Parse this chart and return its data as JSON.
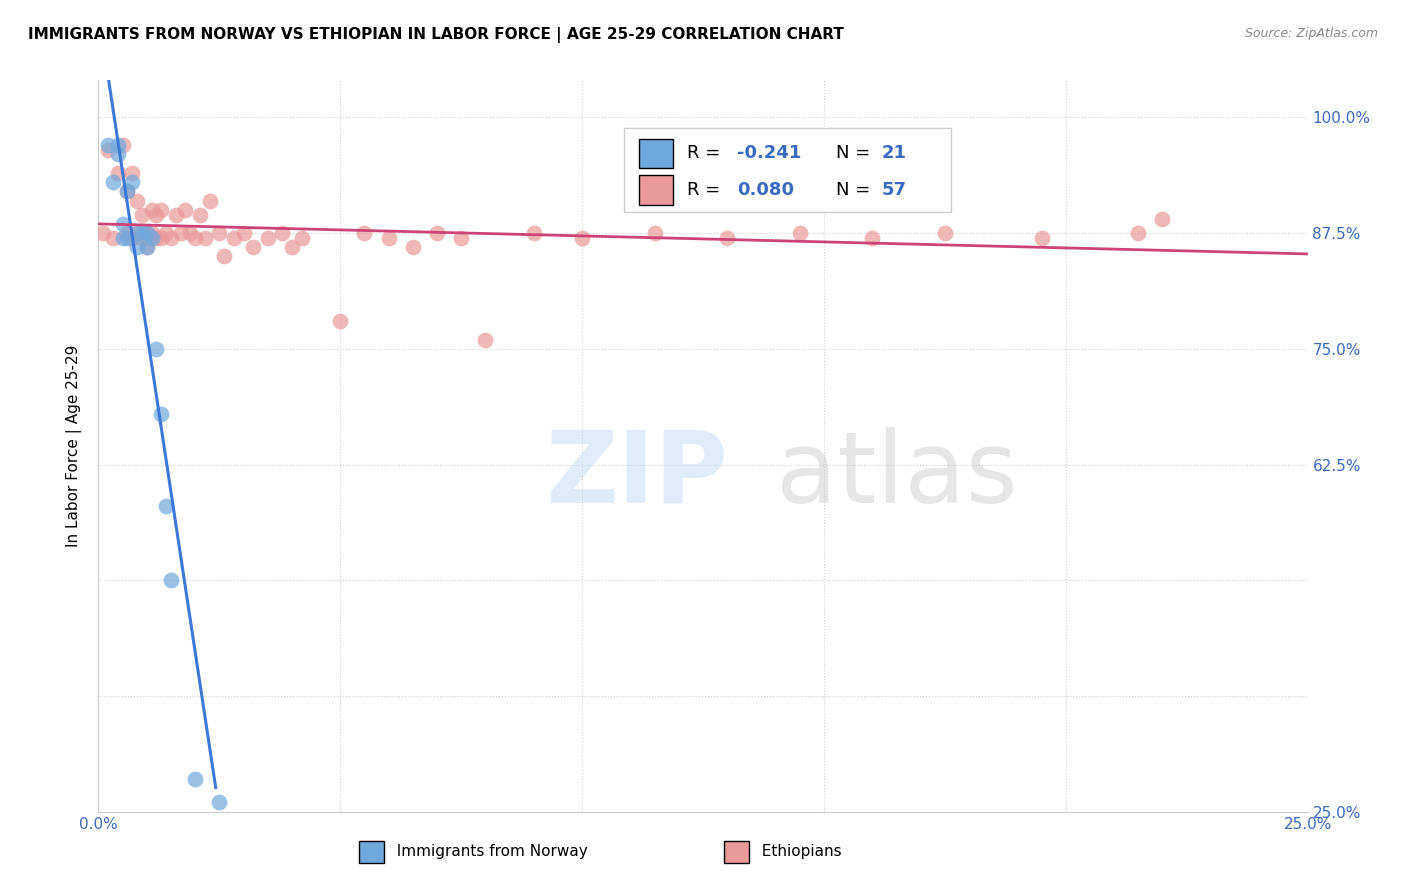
{
  "title": "IMMIGRANTS FROM NORWAY VS ETHIOPIAN IN LABOR FORCE | AGE 25-29 CORRELATION CHART",
  "source": "Source: ZipAtlas.com",
  "xlabel": "",
  "ylabel": "In Labor Force | Age 25-29",
  "xlim": [
    0.0,
    0.25
  ],
  "ylim": [
    0.25,
    1.04
  ],
  "xticks": [
    0.0,
    0.05,
    0.1,
    0.15,
    0.2,
    0.25
  ],
  "xtick_labels": [
    "0.0%",
    "",
    "",
    "",
    "",
    "25.0%"
  ],
  "yticks": [
    0.25,
    0.375,
    0.5,
    0.625,
    0.75,
    0.875,
    1.0
  ],
  "ytick_labels_right": [
    "25.0%",
    "",
    "",
    "62.5%",
    "75.0%",
    "87.5%",
    "100.0%"
  ],
  "norway_color": "#6fa8dc",
  "ethiopia_color": "#ea9999",
  "norway_R": -0.241,
  "norway_N": 21,
  "ethiopia_R": 0.08,
  "ethiopia_N": 57,
  "norway_line_color": "#3c78d8",
  "ethiopia_line_color": "#cc4477",
  "norway_line_dash_color": "#aac4e8",
  "background_color": "#ffffff",
  "grid_color": "#d0d0d0",
  "norway_x": [
    0.002,
    0.003,
    0.004,
    0.004,
    0.005,
    0.005,
    0.006,
    0.006,
    0.007,
    0.008,
    0.008,
    0.009,
    0.01,
    0.01,
    0.011,
    0.012,
    0.013,
    0.014,
    0.015,
    0.02,
    0.025
  ],
  "norway_y": [
    0.97,
    0.93,
    0.97,
    0.96,
    0.885,
    0.87,
    0.92,
    0.87,
    0.93,
    0.875,
    0.86,
    0.875,
    0.875,
    0.86,
    0.87,
    0.75,
    0.68,
    0.58,
    0.5,
    0.285,
    0.26
  ],
  "ethiopia_x": [
    0.001,
    0.002,
    0.003,
    0.004,
    0.005,
    0.006,
    0.006,
    0.007,
    0.007,
    0.008,
    0.008,
    0.009,
    0.009,
    0.01,
    0.01,
    0.011,
    0.011,
    0.012,
    0.012,
    0.013,
    0.013,
    0.014,
    0.015,
    0.016,
    0.017,
    0.018,
    0.019,
    0.02,
    0.021,
    0.022,
    0.023,
    0.025,
    0.026,
    0.028,
    0.03,
    0.032,
    0.035,
    0.038,
    0.04,
    0.042,
    0.05,
    0.055,
    0.06,
    0.065,
    0.07,
    0.075,
    0.08,
    0.09,
    0.1,
    0.115,
    0.13,
    0.145,
    0.16,
    0.175,
    0.195,
    0.215,
    0.22
  ],
  "ethiopia_y": [
    0.875,
    0.965,
    0.87,
    0.94,
    0.97,
    0.92,
    0.875,
    0.94,
    0.87,
    0.91,
    0.875,
    0.895,
    0.87,
    0.875,
    0.86,
    0.9,
    0.875,
    0.895,
    0.87,
    0.9,
    0.87,
    0.875,
    0.87,
    0.895,
    0.875,
    0.9,
    0.875,
    0.87,
    0.895,
    0.87,
    0.91,
    0.875,
    0.85,
    0.87,
    0.875,
    0.86,
    0.87,
    0.875,
    0.86,
    0.87,
    0.78,
    0.875,
    0.87,
    0.86,
    0.875,
    0.87,
    0.76,
    0.875,
    0.87,
    0.875,
    0.87,
    0.875,
    0.87,
    0.875,
    0.87,
    0.875,
    0.89
  ]
}
